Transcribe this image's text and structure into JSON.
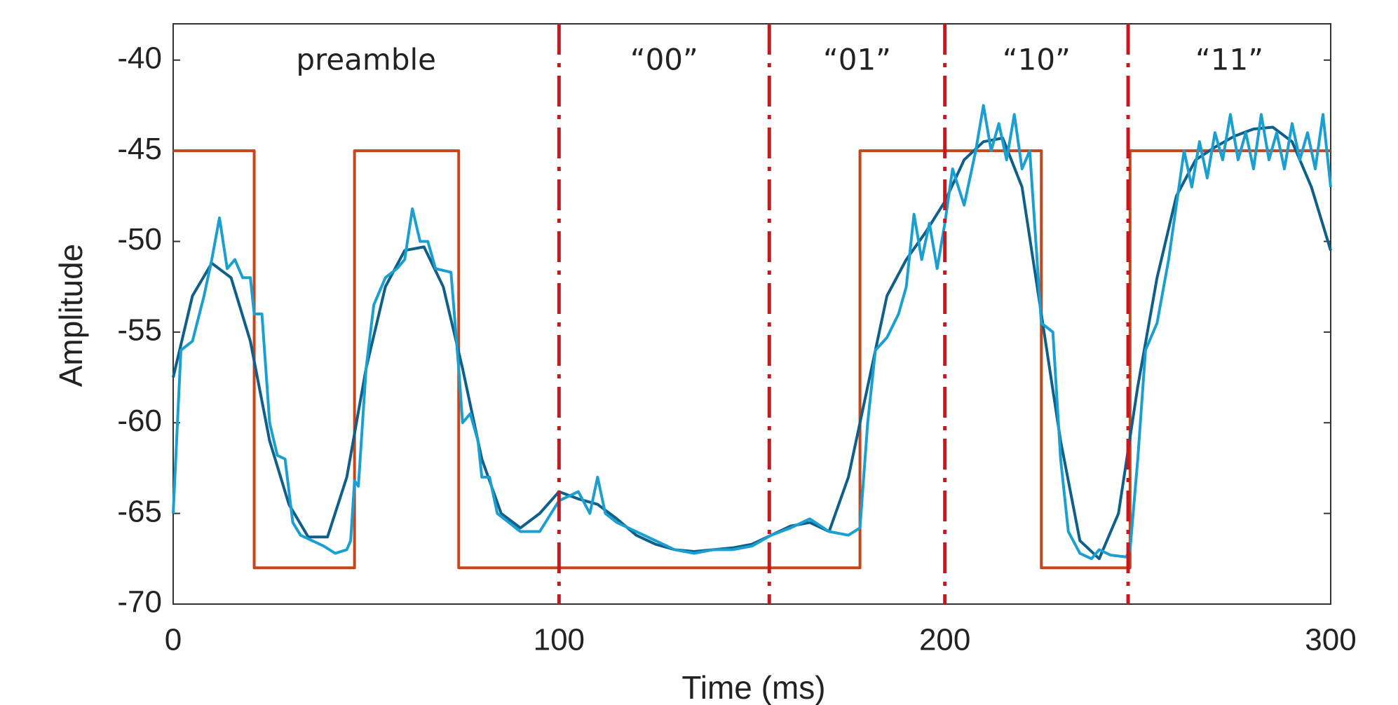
{
  "chart_data": {
    "type": "line",
    "xlabel": "Time (ms)",
    "ylabel": "Amplitude",
    "xlim": [
      0,
      300
    ],
    "ylim": [
      -70,
      -38
    ],
    "xticks": [
      0,
      100,
      200,
      300
    ],
    "yticks": [
      -70,
      -65,
      -60,
      -55,
      -50,
      -45,
      -40
    ],
    "vlines": [
      100,
      154.5,
      200,
      247.5
    ],
    "vline_color": "#d0141c",
    "annotations": [
      "preamble",
      "“00”",
      "“01”",
      "“10”",
      "“11”"
    ],
    "series": [
      {
        "color": "#c4461c",
        "x": [
          0,
          21,
          21,
          47,
          47,
          74,
          74,
          178,
          178,
          225,
          225,
          248,
          248,
          300
        ],
        "values": [
          -45,
          -45,
          -68,
          -68,
          -45,
          -45,
          -68,
          -68,
          -45,
          -45,
          -68,
          -68,
          -45,
          -45
        ]
      },
      {
        "color": "#0e5f8a",
        "x": [
          0,
          5,
          10,
          15,
          20,
          25,
          30,
          35,
          40,
          45,
          50,
          55,
          60,
          65,
          70,
          75,
          80,
          85,
          90,
          95,
          100,
          105,
          110,
          115,
          120,
          125,
          130,
          135,
          140,
          145,
          150,
          155,
          160,
          165,
          170,
          175,
          180,
          185,
          190,
          195,
          200,
          205,
          210,
          215,
          220,
          225,
          230,
          235,
          240,
          245,
          250,
          255,
          260,
          265,
          270,
          275,
          280,
          285,
          290,
          295,
          300
        ],
        "values": [
          -57.5,
          -53,
          -51.2,
          -52,
          -55.5,
          -61,
          -64.5,
          -66.3,
          -66.3,
          -63,
          -57,
          -52.5,
          -50.5,
          -50.3,
          -52.5,
          -57,
          -62,
          -65,
          -65.8,
          -65,
          -63.8,
          -64.2,
          -64.5,
          -65.3,
          -66.2,
          -66.7,
          -67,
          -67.1,
          -67,
          -66.9,
          -66.7,
          -66.2,
          -65.7,
          -65.5,
          -66,
          -63,
          -58,
          -53,
          -51,
          -49.5,
          -47.8,
          -45.5,
          -44.5,
          -44.3,
          -47,
          -54,
          -61,
          -66.5,
          -67.5,
          -65,
          -58,
          -52,
          -47.5,
          -45.5,
          -44.8,
          -44.2,
          -43.8,
          -43.7,
          -44.5,
          -47,
          -50.5
        ]
      },
      {
        "color": "#1aa0d0",
        "x": [
          0,
          2,
          5,
          8,
          10,
          12,
          14,
          16,
          18,
          20,
          21,
          23,
          25,
          27,
          29,
          31,
          33,
          36,
          39,
          42,
          45,
          46,
          47,
          48,
          50,
          52,
          55,
          58,
          60,
          62,
          64,
          66,
          68,
          72,
          74,
          75,
          77,
          79,
          80,
          82,
          84,
          87,
          90,
          95,
          100,
          105,
          108,
          110,
          112,
          115,
          120,
          125,
          130,
          135,
          140,
          145,
          150,
          155,
          160,
          165,
          170,
          175,
          178,
          180,
          182,
          185,
          188,
          190,
          192,
          194,
          196,
          198,
          200,
          202,
          205,
          208,
          210,
          212,
          214,
          216,
          218,
          220,
          222,
          225,
          228,
          230,
          232,
          235,
          238,
          240,
          243,
          247,
          248,
          250,
          252,
          255,
          258,
          260,
          262,
          264,
          266,
          268,
          270,
          272,
          274,
          276,
          278,
          280,
          282,
          284,
          286,
          288,
          290,
          292,
          294,
          296,
          298,
          300
        ],
        "values": [
          -65,
          -56,
          -55.5,
          -53,
          -51,
          -48.7,
          -51.5,
          -51,
          -52,
          -52,
          -54,
          -54,
          -60,
          -61.8,
          -62,
          -65.5,
          -66.2,
          -66.5,
          -66.8,
          -67.2,
          -67,
          -66.5,
          -63.2,
          -63.5,
          -57,
          -53.5,
          -52,
          -51.5,
          -51,
          -48.2,
          -50,
          -50,
          -51.5,
          -51.7,
          -57,
          -60,
          -59.5,
          -61,
          -63,
          -63,
          -65,
          -65.5,
          -66,
          -66,
          -64.3,
          -63.8,
          -65,
          -63,
          -65,
          -65.5,
          -66,
          -66.5,
          -67,
          -67.2,
          -67,
          -67,
          -66.8,
          -66.2,
          -65.8,
          -65.3,
          -66,
          -66.2,
          -65.8,
          -60,
          -56,
          -55.3,
          -54,
          -52.5,
          -48.5,
          -51,
          -49,
          -51.5,
          -49,
          -46,
          -48,
          -45,
          -42.5,
          -45,
          -43.5,
          -45.5,
          -43,
          -46,
          -45,
          -54.5,
          -55,
          -62,
          -66,
          -67.2,
          -67.5,
          -67,
          -67.3,
          -67.4,
          -67,
          -62,
          -56,
          -54.5,
          -51,
          -48,
          -45,
          -47,
          -44.5,
          -46.5,
          -44,
          -45.5,
          -43,
          -45.5,
          -44,
          -46,
          -43,
          -45.5,
          -44,
          -46,
          -43.5,
          -45.5,
          -44,
          -46,
          -43,
          -47
        ]
      }
    ]
  }
}
